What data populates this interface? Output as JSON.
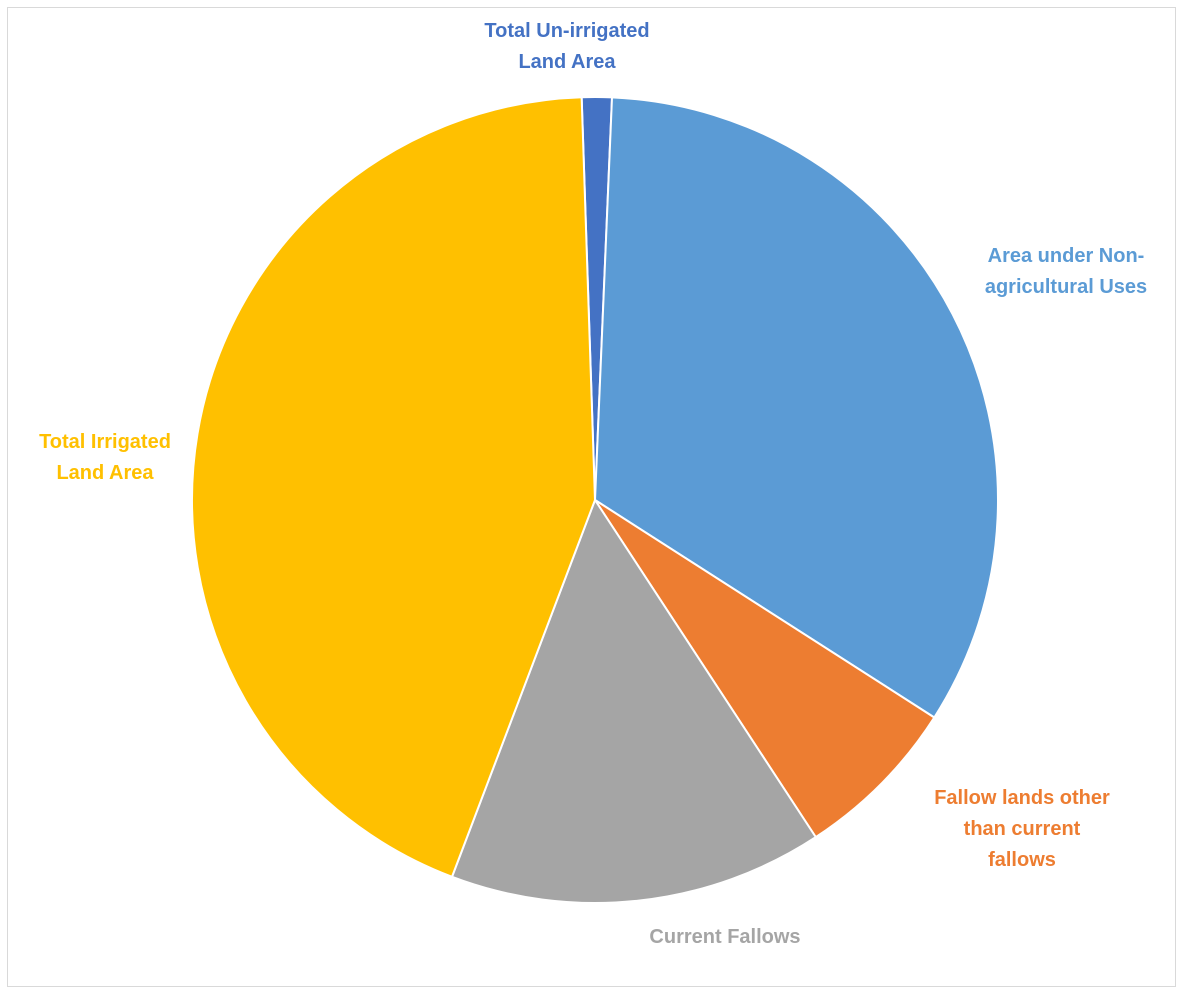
{
  "chart_data": {
    "type": "pie",
    "title": "",
    "start_angle_deg": -1.9,
    "direction": "clockwise",
    "slices": [
      {
        "name": "Total Un-irrigated Land Area",
        "label_lines": [
          "Total Un-irrigated",
          "Land Area"
        ],
        "value": 1.2,
        "color": "#4472c4"
      },
      {
        "name": "Area under Non-agricultural Uses",
        "label_lines": [
          "Area under Non-",
          "agricultural Uses"
        ],
        "value": 33.4,
        "color": "#5b9bd5"
      },
      {
        "name": "Fallow lands other than current fallows",
        "label_lines": [
          "Fallow lands other",
          "than current",
          "fallows"
        ],
        "value": 6.7,
        "color": "#ed7d31"
      },
      {
        "name": "Current Fallows",
        "label_lines": [
          "Current Fallows"
        ],
        "value": 15.0,
        "color": "#a5a5a5"
      },
      {
        "name": "Total Irrigated Land Area",
        "label_lines": [
          "Total Irrigated",
          "Land Area"
        ],
        "value": 43.7,
        "color": "#ffc000"
      }
    ],
    "legend": "none"
  }
}
